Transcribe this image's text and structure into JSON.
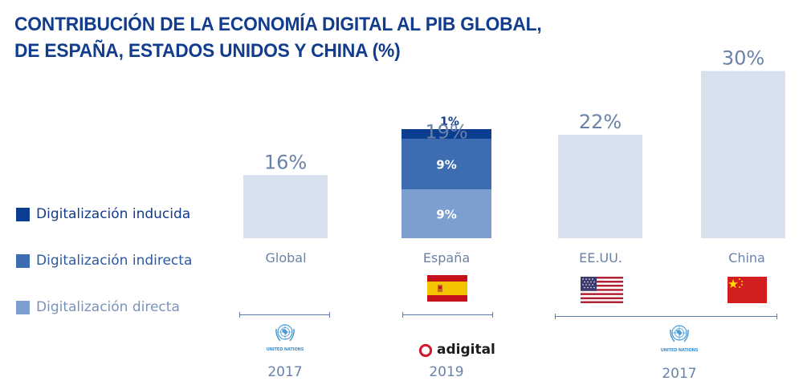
{
  "title": {
    "line1": "CONTRIBUCIÓN DE LA ECONOMÍA DIGITAL AL PIB GLOBAL,",
    "line2": "DE ESPAÑA, ESTADOS UNIDOS Y CHINA (%)"
  },
  "legend": [
    {
      "label": "Digitalización inducida",
      "color": "#0b3d91",
      "text_color": "#123c8c"
    },
    {
      "label": "Digitalización indirecta",
      "color": "#3d6cb1",
      "text_color": "#2e5aa0"
    },
    {
      "label": "Digitalización directa",
      "color": "#7d9fcf",
      "text_color": "#7a93bb"
    }
  ],
  "chart_data": {
    "type": "bar",
    "title": "CONTRIBUCIÓN DE LA ECONOMÍA DIGITAL AL PIB GLOBAL, DE ESPAÑA, ESTADOS UNIDOS Y CHINA (%)",
    "categories": [
      "Global",
      "España",
      "EE.UU.",
      "China"
    ],
    "totals": [
      16,
      19,
      22,
      30
    ],
    "total_labels": [
      "16%",
      "19%",
      "22%",
      "30%"
    ],
    "series": [
      {
        "name": "Digitalización directa",
        "values": [
          null,
          9,
          null,
          null
        ],
        "labels": [
          null,
          "9%",
          null,
          null
        ]
      },
      {
        "name": "Digitalización indirecta",
        "values": [
          null,
          9,
          null,
          null
        ],
        "labels": [
          null,
          "9%",
          null,
          null
        ]
      },
      {
        "name": "Digitalización inducida",
        "values": [
          null,
          1,
          null,
          null
        ],
        "labels": [
          null,
          "1%",
          null,
          null
        ]
      }
    ],
    "total_bar_color": "#d7e0ed",
    "total_label_color": "#6a82a8",
    "xlabel": "",
    "ylabel": "",
    "grid": false,
    "legend_position": "left"
  },
  "sources": [
    {
      "name": "UNITED NATIONS",
      "year": "2017",
      "covers": [
        "Global"
      ]
    },
    {
      "name": "adigital",
      "year": "2019",
      "covers": [
        "España"
      ]
    },
    {
      "name": "UNITED NATIONS",
      "year": "2017",
      "covers": [
        "EE.UU.",
        "China"
      ]
    }
  ],
  "flags": [
    "spain-flag",
    "usa-flag",
    "china-flag"
  ]
}
